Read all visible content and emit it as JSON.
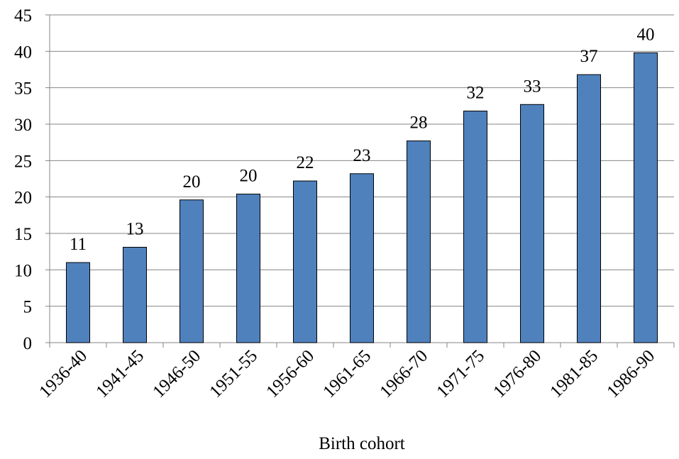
{
  "chart_data": {
    "type": "bar",
    "x_label": "Birth cohort",
    "categories": [
      "1936-40",
      "1941-45",
      "1946-50",
      "1951-55",
      "1956-60",
      "1961-65",
      "1966-70",
      "1971-75",
      "1976-80",
      "1981-85",
      "1986-90"
    ],
    "values": [
      11.0,
      13.1,
      19.6,
      20.4,
      22.2,
      23.2,
      27.7,
      31.8,
      32.7,
      36.8,
      39.8
    ],
    "value_labels": [
      "11",
      "13",
      "20",
      "20",
      "22",
      "23",
      "28",
      "32",
      "33",
      "37",
      "40"
    ],
    "color": "#4f81bd",
    "ylim": [
      0,
      45
    ],
    "yticks": [
      0,
      5,
      10,
      15,
      20,
      25,
      30,
      35,
      40,
      45
    ],
    "grid": true
  }
}
